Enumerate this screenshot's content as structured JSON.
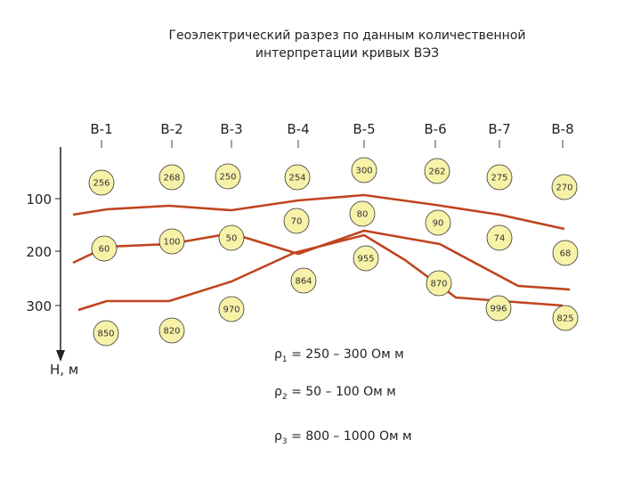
{
  "title": {
    "line1": "Геоэлектрический разрез по данным количественной",
    "line2": "интерпретации кривых ВЭЗ"
  },
  "stations": [
    "В-1",
    "В-2",
    "В-3",
    "В-4",
    "В-5",
    "В-6",
    "В-7",
    "В-8"
  ],
  "depth_axis": {
    "label": "Н, м",
    "ticks": [
      "100",
      "200",
      "300"
    ]
  },
  "resistivity_labels": {
    "layer1": [
      "256",
      "268",
      "250",
      "254",
      "300",
      "262",
      "275",
      "270"
    ],
    "layer2": [
      "60",
      "100",
      "50",
      "70",
      "80",
      "90",
      "74",
      "68"
    ],
    "layer3": [
      "850",
      "820",
      "970",
      "864",
      "955",
      "870",
      "996",
      "825"
    ]
  },
  "legend": [
    {
      "symbol": "ρ",
      "sub": "1",
      "text": " = 250 – 300 Ом м"
    },
    {
      "symbol": "ρ",
      "sub": "2",
      "text": " = 50 – 100 Ом м"
    },
    {
      "symbol": "ρ",
      "sub": "3",
      "text": " = 800 – 1000 Ом м"
    }
  ],
  "colors": {
    "boundary_line": "#c0441f",
    "circle_fill": "#f7f2a8",
    "circle_stroke": "#333333"
  }
}
